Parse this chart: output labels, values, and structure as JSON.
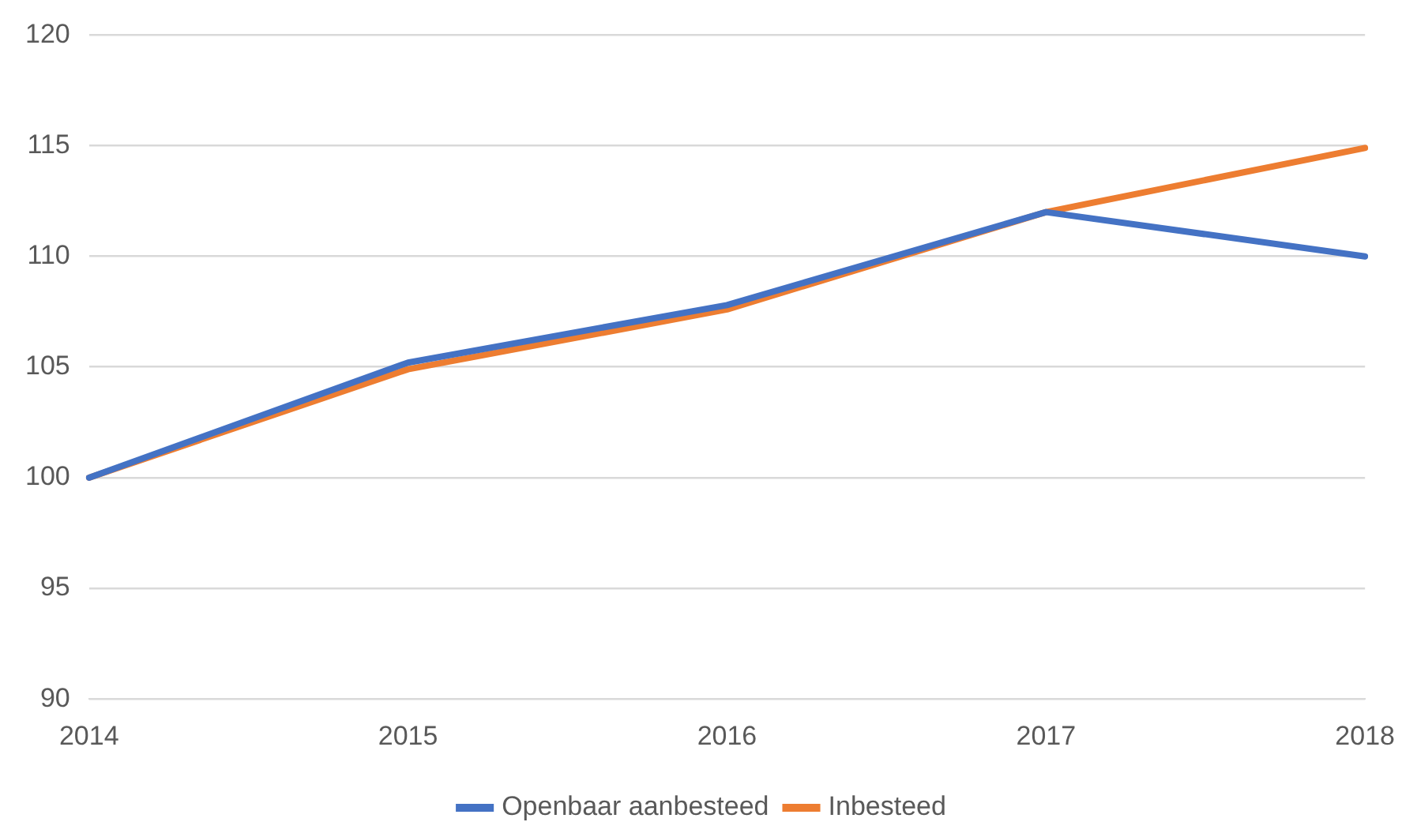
{
  "chart_data": {
    "type": "line",
    "categories": [
      "2014",
      "2015",
      "2016",
      "2017",
      "2018"
    ],
    "series": [
      {
        "name": "Openbaar aanbesteed",
        "color": "#4472c4",
        "values": [
          100,
          105.2,
          107.8,
          112,
          110
        ]
      },
      {
        "name": "Inbesteed",
        "color": "#ed7d31",
        "values": [
          100,
          104.9,
          107.6,
          112,
          114.9
        ]
      }
    ],
    "ylim": [
      90,
      120
    ],
    "yticks": [
      90,
      95,
      100,
      105,
      110,
      115,
      120
    ],
    "grid": "y",
    "legend": "bottom",
    "marker": "none",
    "line_style": "solid"
  }
}
